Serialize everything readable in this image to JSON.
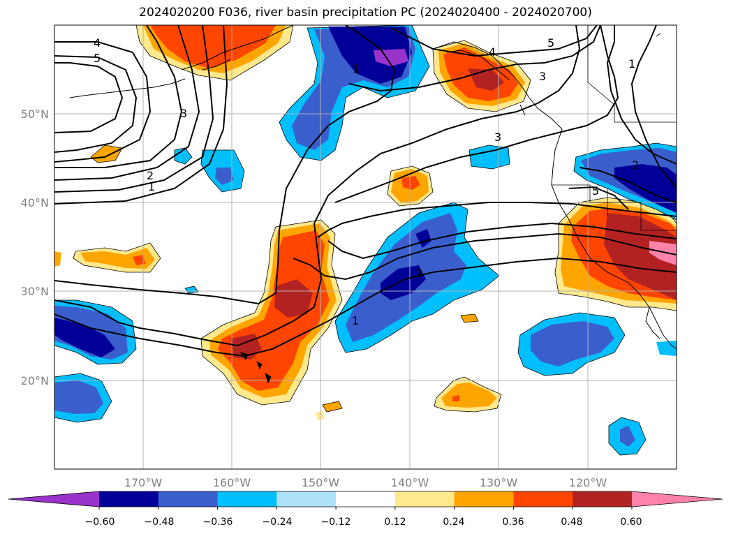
{
  "title": "2024020200 F036, river basin precipitation PC (2024020400 - 2024020700)",
  "lat_labels": [
    "50°N",
    "40°N",
    "30°N",
    "20°N"
  ],
  "lon_labels": [
    "170°W",
    "160°W",
    "150°W",
    "140°W",
    "130°W",
    "120°W"
  ],
  "contour_labels": {
    "c4_left": "4",
    "c5_left": "5",
    "c3_left": "3",
    "c2_left": "2",
    "c1_left": "1",
    "c1_top": "1",
    "c4_top": "4",
    "c5_top": "5",
    "c3_top": "3",
    "c1_topright": "1",
    "c3_mid": "3",
    "c2_east": "2",
    "c5_east": "5",
    "c2_mid": "2",
    "c1_mid": "1"
  },
  "colorbar": {
    "ticks": [
      "−0.60",
      "−0.48",
      "−0.36",
      "−0.24",
      "−0.12",
      "0.12",
      "0.24",
      "0.36",
      "0.48",
      "0.60"
    ],
    "colors": [
      "#9933cc",
      "#000099",
      "#3a5fcd",
      "#00bfff",
      "#aee2fa",
      "#ffffff",
      "#ffe98c",
      "#ffa500",
      "#ff4500",
      "#b22222",
      "#ff82ab"
    ],
    "extend": "both"
  },
  "colors": {
    "gridline": "#b0b0b0",
    "contour": "#000000",
    "coastline": "#000000"
  }
}
